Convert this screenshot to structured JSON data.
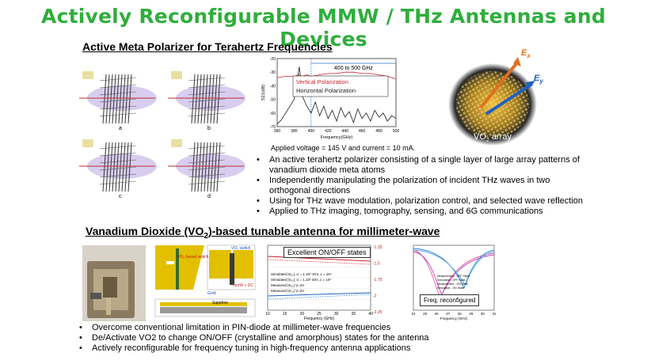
{
  "title": "Actively Reconfigurable MMW / THz Antennas and Devices",
  "section1": {
    "heading": "Active Meta Polarizer for Terahertz Frequencies",
    "panel_letters": [
      "a",
      "b",
      "c",
      "d"
    ],
    "chart_caption": "Applied voltage = 145 V and current = 10 mA.",
    "array_label": "VO",
    "array_label_sub": "2",
    "array_label_rest": " array",
    "ex_label": "E",
    "ex_sub": "x",
    "ey_label": "E",
    "ey_sub": "y",
    "bullets": [
      "An active terahertz polarizer consisting of a single layer of large array patterns of vanadium dioxide meta atoms",
      "Independently manipulating the polarization of incident THz waves in two orthogonal directions",
      "Using for THz wave modulation, polarization control, and selected wave reflection",
      "Applied to THz imaging, tomography, sensing, and 6G communications"
    ]
  },
  "section2": {
    "heading_pre": "Vanadium Dioxide (VO",
    "heading_sub": "2",
    "heading_post": ")-based tunable antenna for millimeter-wave",
    "onoff_label": "Excellent ON/OFF states",
    "freq_label": "Freq. reconfigured",
    "diagram_labels": [
      "VO₂ based switch",
      "VO₂ switch",
      "mmW + DC",
      "Sapphire",
      "Gold"
    ],
    "bullets": [
      "Overcome conventional limitation in PIN-diode at millimeter-wave frequencies",
      "De/Activate VO2 to change ON/OFF (crystalline and amorphous) states for the antenna",
      "Actively reconfigurable for frequency tuning in high-frequency antenna applications"
    ]
  },
  "colors": {
    "title": "#2fae3c",
    "vertical": "#d0202a",
    "horizontal": "#1a1a1a",
    "arrow_x": "#e07020",
    "arrow_y": "#2060c0"
  },
  "chart_data": [
    {
      "type": "line",
      "xlabel": "Frequency(GHz)",
      "ylabel": "S21(dB)",
      "xlim": [
        360,
        500
      ],
      "ylim": [
        -70,
        -20
      ],
      "x_ticks": [
        360,
        380,
        400,
        420,
        440,
        460,
        480,
        500
      ],
      "y_ticks": [
        -20,
        -30,
        -40,
        -50,
        -60,
        -70
      ],
      "band_label": "400 to 500 GHz",
      "band": [
        400,
        500
      ],
      "series": [
        {
          "name": "Vertical Polarization",
          "x": [
            360,
            370,
            380,
            385,
            390,
            395,
            400,
            410,
            420,
            430,
            440,
            450,
            460,
            470,
            480,
            490,
            500
          ],
          "y": [
            -34,
            -33,
            -33,
            -32,
            -33,
            -32,
            -33,
            -32,
            -31,
            -31,
            -30,
            -30,
            -31,
            -31,
            -32,
            -33,
            -35
          ]
        },
        {
          "name": "Horizontal Polarization",
          "x": [
            360,
            365,
            370,
            375,
            380,
            383,
            386,
            390,
            395,
            400,
            405,
            410,
            415,
            420,
            425,
            430,
            435,
            440,
            445,
            450,
            455,
            460,
            465,
            470,
            475,
            480,
            485,
            490,
            495,
            500
          ],
          "y": [
            -68,
            -65,
            -60,
            -55,
            -50,
            -38,
            -26,
            -48,
            -55,
            -60,
            -52,
            -62,
            -55,
            -64,
            -58,
            -66,
            -56,
            -63,
            -59,
            -67,
            -57,
            -64,
            -60,
            -66,
            -58,
            -63,
            -60,
            -66,
            -62,
            -64
          ]
        }
      ]
    },
    {
      "type": "line",
      "xlabel": "Frequency (GHz)",
      "y_ticks_right": [
        "-1.25",
        "-1.5",
        "-1.75",
        "-2",
        "-2.25"
      ],
      "x_ticks": [
        10,
        15,
        20,
        25,
        30,
        35,
        40
      ],
      "legend": [
        "Simulated |S₂₁|, σ = 1.10⁵ S/m, ε = 10⁴",
        "Simulated |S₂₁|, σ = 1.10² S/m, ε = 10⁴",
        "Measured |S₂₁|  V=2V",
        "Measured |S₂₁|  V=2V"
      ]
    },
    {
      "type": "line",
      "xlabel": "Frequency (GHz)",
      "x_ticks": [
        24,
        25,
        26,
        27,
        28,
        29,
        30,
        31
      ],
      "legend": [
        "Measurement - OFF State",
        "Simulation - OFF State",
        "Measurement - ON State",
        "Simulation - ON State"
      ]
    }
  ]
}
